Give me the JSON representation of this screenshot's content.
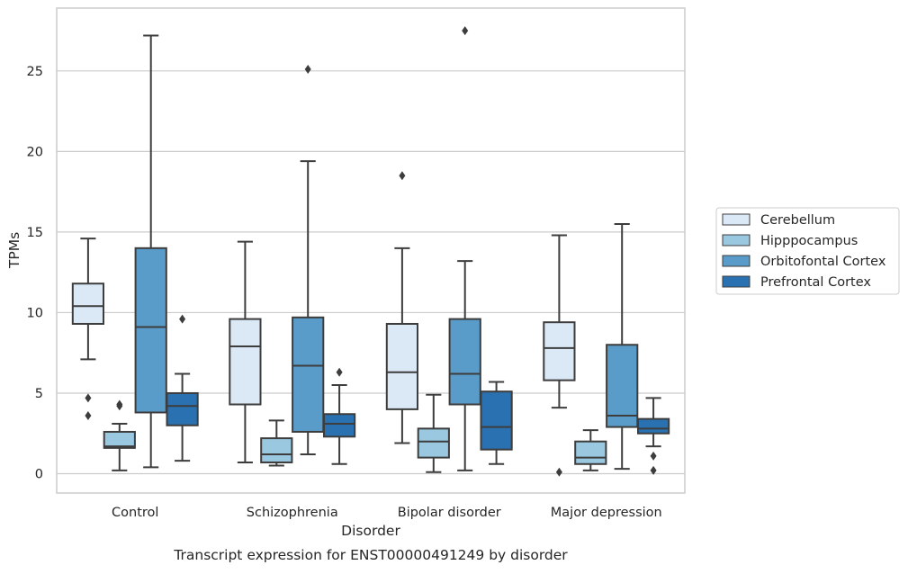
{
  "caption": "Transcript expression for ENST00000491249 by disorder",
  "chart_data": {
    "type": "box",
    "title": "",
    "xlabel": "Disorder",
    "ylabel": "TPMs",
    "ylim": [
      -1.2,
      28.9
    ],
    "yticks": [
      0,
      5,
      10,
      15,
      20,
      25
    ],
    "grid": "horizontal",
    "legend_position": "right",
    "categories": [
      "Control",
      "Schizophrenia",
      "Bipolar disorder",
      "Major depression"
    ],
    "series": [
      {
        "name": "Cerebellum",
        "color": "#dbe9f6",
        "boxes": [
          {
            "whislo": 7.1,
            "q1": 9.3,
            "median": 10.4,
            "q3": 11.8,
            "whishi": 14.6,
            "fliers": [
              4.7,
              3.6
            ]
          },
          {
            "whislo": 0.7,
            "q1": 4.3,
            "median": 7.9,
            "q3": 9.6,
            "whishi": 14.4,
            "fliers": []
          },
          {
            "whislo": 1.9,
            "q1": 4.0,
            "median": 6.3,
            "q3": 9.3,
            "whishi": 14.0,
            "fliers": [
              18.5
            ]
          },
          {
            "whislo": 4.1,
            "q1": 5.8,
            "median": 7.8,
            "q3": 9.4,
            "whishi": 14.8,
            "fliers": [
              0.1
            ]
          }
        ]
      },
      {
        "name": "Hipppocampus",
        "color": "#9ac8e0",
        "boxes": [
          {
            "whislo": 0.2,
            "q1": 1.6,
            "median": 1.7,
            "q3": 2.6,
            "whishi": 3.1,
            "fliers": [
              4.3,
              4.2
            ]
          },
          {
            "whislo": 0.5,
            "q1": 0.7,
            "median": 1.2,
            "q3": 2.2,
            "whishi": 3.3,
            "fliers": []
          },
          {
            "whislo": 0.1,
            "q1": 1.0,
            "median": 2.0,
            "q3": 2.8,
            "whishi": 4.9,
            "fliers": []
          },
          {
            "whislo": 0.2,
            "q1": 0.6,
            "median": 1.0,
            "q3": 2.0,
            "whishi": 2.7,
            "fliers": []
          }
        ]
      },
      {
        "name": "Orbitofontal Cortex",
        "color": "#5a9cc9",
        "boxes": [
          {
            "whislo": 0.4,
            "q1": 3.8,
            "median": 9.1,
            "q3": 14.0,
            "whishi": 27.2,
            "fliers": []
          },
          {
            "whislo": 1.2,
            "q1": 2.6,
            "median": 6.7,
            "q3": 9.7,
            "whishi": 19.4,
            "fliers": [
              25.1
            ]
          },
          {
            "whislo": 0.2,
            "q1": 4.3,
            "median": 6.2,
            "q3": 9.6,
            "whishi": 13.2,
            "fliers": [
              27.5
            ]
          },
          {
            "whislo": 0.3,
            "q1": 2.9,
            "median": 3.6,
            "q3": 8.0,
            "whishi": 15.5,
            "fliers": []
          }
        ]
      },
      {
        "name": "Prefrontal Cortex",
        "color": "#2a71b1",
        "boxes": [
          {
            "whislo": 0.8,
            "q1": 3.0,
            "median": 4.2,
            "q3": 5.0,
            "whishi": 6.2,
            "fliers": [
              9.6
            ]
          },
          {
            "whislo": 0.6,
            "q1": 2.3,
            "median": 3.1,
            "q3": 3.7,
            "whishi": 5.5,
            "fliers": [
              6.3
            ]
          },
          {
            "whislo": 0.6,
            "q1": 1.5,
            "median": 2.9,
            "q3": 5.1,
            "whishi": 5.7,
            "fliers": []
          },
          {
            "whislo": 1.7,
            "q1": 2.5,
            "median": 2.8,
            "q3": 3.4,
            "whishi": 4.7,
            "fliers": [
              1.1,
              0.2
            ]
          }
        ]
      }
    ]
  }
}
